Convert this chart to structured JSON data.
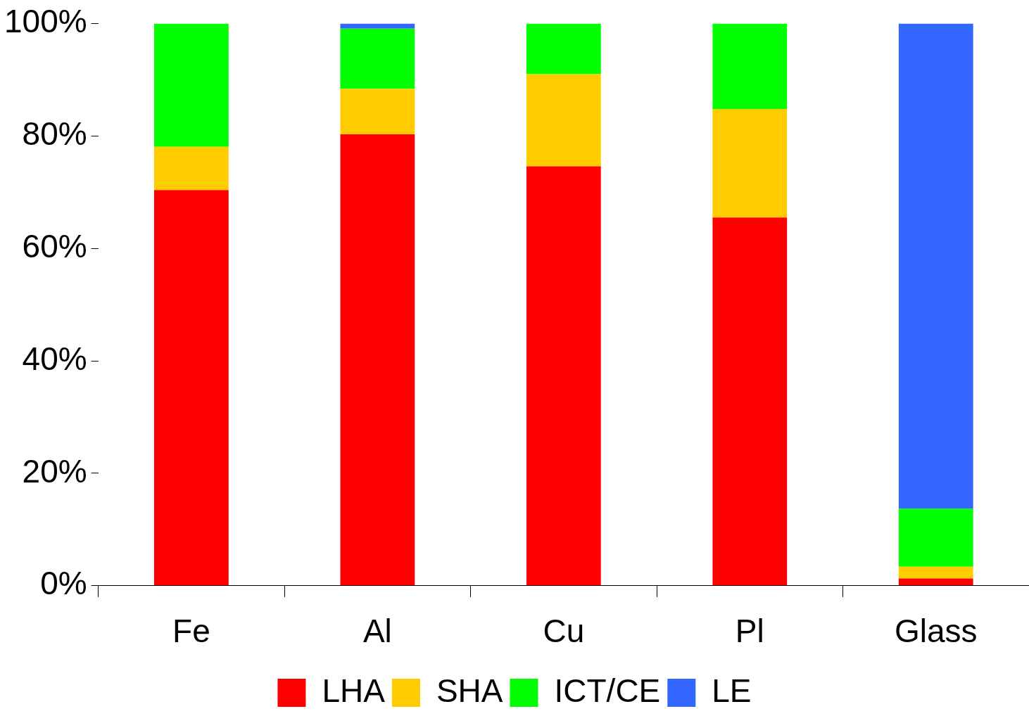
{
  "chart_data": {
    "type": "bar",
    "stacked": true,
    "categories": [
      "Fe",
      "Al",
      "Cu",
      "Pl",
      "Glass"
    ],
    "series": [
      {
        "name": "LHA",
        "color": "#ff0000",
        "values": [
          70.4,
          80.3,
          74.6,
          65.5,
          1.3
        ]
      },
      {
        "name": "SHA",
        "color": "#ffcc00",
        "values": [
          7.7,
          8.1,
          16.4,
          19.3,
          2.1
        ]
      },
      {
        "name": "ICT/CE",
        "color": "#00ff00",
        "values": [
          21.9,
          10.7,
          9.0,
          15.2,
          10.3
        ]
      },
      {
        "name": "LE",
        "color": "#3366ff",
        "values": [
          0,
          0.9,
          0,
          0,
          86.3
        ]
      }
    ],
    "ylim": [
      0,
      100
    ],
    "yticks": [
      {
        "value": 0,
        "label": "0%"
      },
      {
        "value": 20,
        "label": "20%"
      },
      {
        "value": 40,
        "label": "40%"
      },
      {
        "value": 60,
        "label": "60%"
      },
      {
        "value": 80,
        "label": "80%"
      },
      {
        "value": 100,
        "label": "100%"
      }
    ],
    "grid": false,
    "legend": "bottom"
  }
}
